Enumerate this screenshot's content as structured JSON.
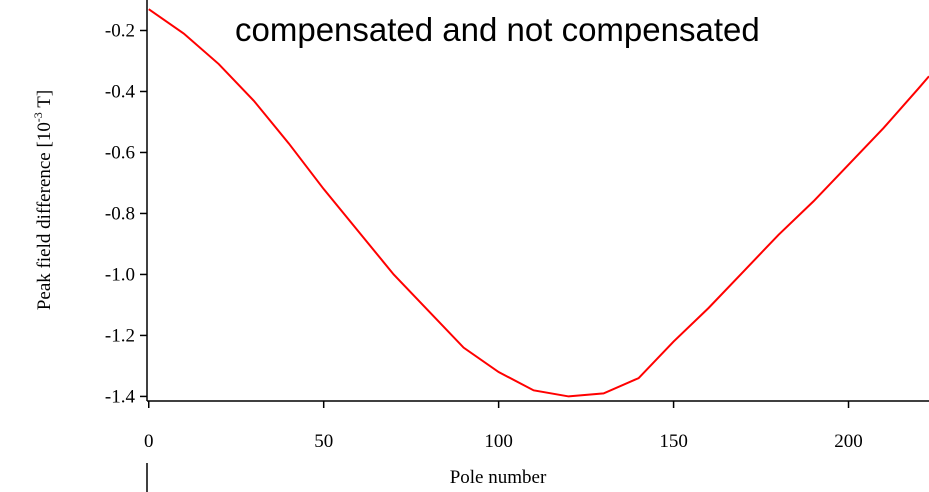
{
  "chart_data": {
    "type": "line",
    "title": "compensated and not compensated",
    "xlabel": "Pole number",
    "ylabel": {
      "text": "Peak field difference [10",
      "superscript": "-3",
      "suffix": " T]"
    },
    "x": [
      0,
      10,
      20,
      30,
      40,
      50,
      60,
      70,
      80,
      90,
      100,
      110,
      120,
      130,
      140,
      150,
      160,
      170,
      180,
      190,
      200,
      210,
      220,
      223
    ],
    "series": [
      {
        "color": "#ff0000",
        "values": [
          -0.13,
          -0.21,
          -0.31,
          -0.43,
          -0.57,
          -0.72,
          -0.86,
          -1.0,
          -1.12,
          -1.24,
          -1.32,
          -1.38,
          -1.4,
          -1.39,
          -1.34,
          -1.22,
          -1.11,
          -0.99,
          -0.87,
          -0.76,
          -0.64,
          -0.52,
          -0.39,
          -0.35
        ]
      }
    ],
    "xlim": [
      -0.5,
      223
    ],
    "ylim": [
      -1.415,
      -0.1
    ],
    "xticks": [
      0,
      50,
      100,
      150,
      200
    ],
    "yticks": [
      -0.2,
      -0.4,
      -0.6,
      -0.8,
      {
        "value": -1.0,
        "label": "-1.0"
      },
      -1.2,
      -1.4
    ]
  }
}
